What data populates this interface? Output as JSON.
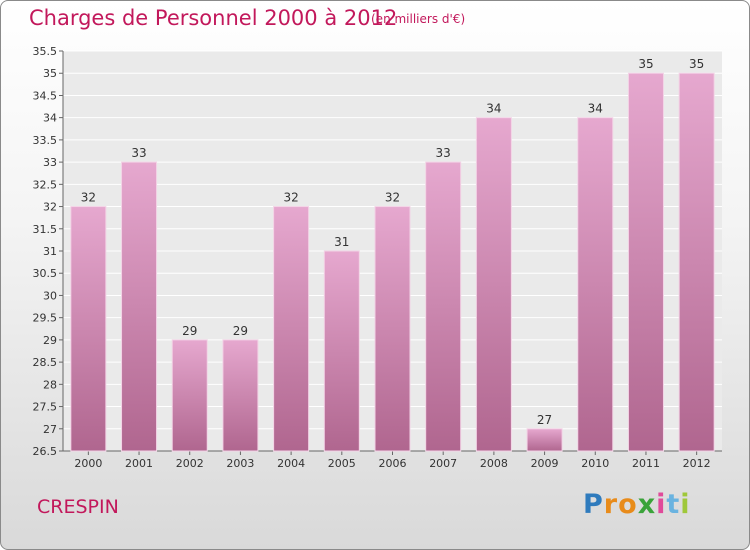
{
  "title": "Charges de Personnel 2000 à 2012",
  "subtitle": "(en milliers d'€)",
  "commune": "CRESPIN",
  "logo": {
    "letters": [
      "P",
      "r",
      "o",
      "x",
      "i",
      "t",
      "i"
    ],
    "colors": [
      "#2f7bbd",
      "#e88b1a",
      "#e88b1a",
      "#3aa33a",
      "#e04a9a",
      "#6ab3e0",
      "#9fc83a"
    ]
  },
  "colors": {
    "bar_top": "#e6a8cf",
    "bar_bottom": "#b0668f",
    "accent": "#c2185b"
  },
  "chart_data": {
    "type": "bar",
    "categories": [
      "2000",
      "2001",
      "2002",
      "2003",
      "2004",
      "2005",
      "2006",
      "2007",
      "2008",
      "2009",
      "2010",
      "2011",
      "2012"
    ],
    "values": [
      32,
      33,
      29,
      29,
      32,
      31,
      32,
      33,
      34,
      27,
      34,
      35,
      35
    ],
    "data_labels": [
      "32",
      "33",
      "29",
      "29",
      "32",
      "31",
      "32",
      "33",
      "34",
      "27",
      "34",
      "35",
      "35"
    ],
    "ylim": [
      26.5,
      35.5
    ],
    "yticks": [
      "26.5",
      "27",
      "27.5",
      "28",
      "28.5",
      "29",
      "29.5",
      "30",
      "30.5",
      "31",
      "31.5",
      "32",
      "32.5",
      "33",
      "33.5",
      "34",
      "34.5",
      "35",
      "35.5"
    ],
    "grid": true
  }
}
